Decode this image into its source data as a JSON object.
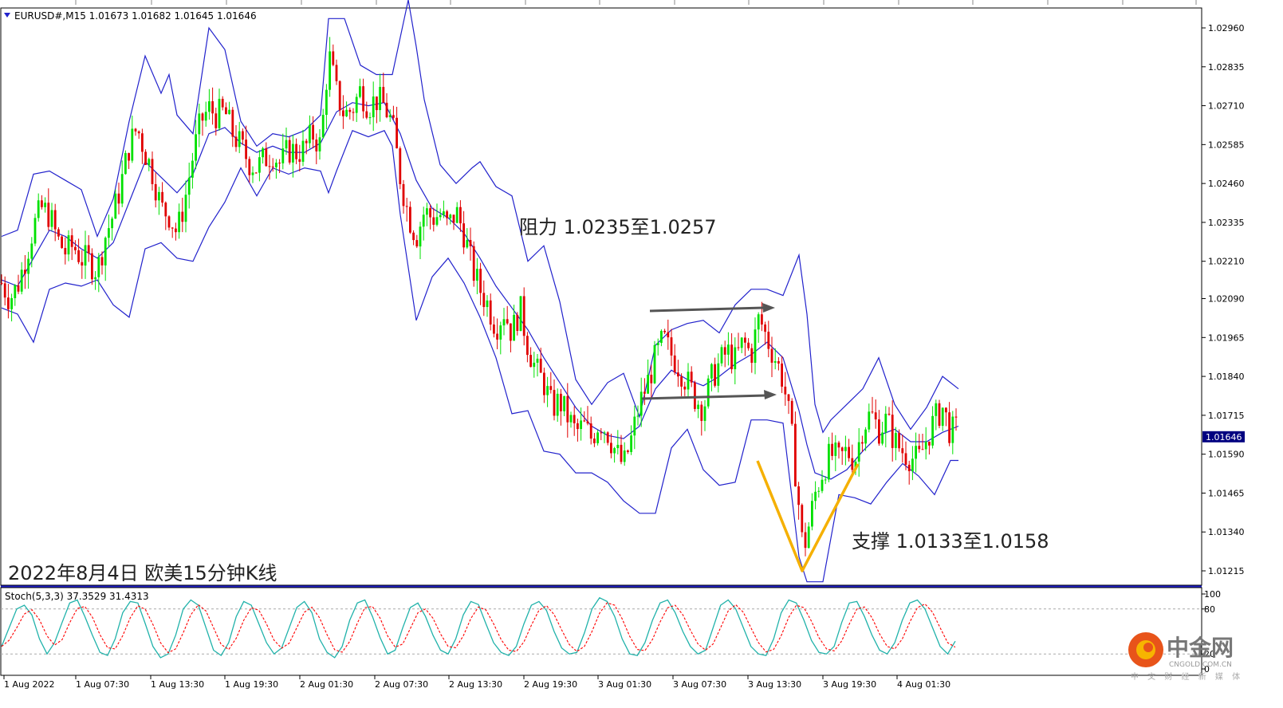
{
  "header": {
    "symbol_line": "EURUSD#,M15  1.01673 1.01682 1.01645 1.01646"
  },
  "chart_data": {
    "type": "candlestick",
    "symbol": "EURUSD#",
    "timeframe": "M15",
    "ohlc_last": {
      "open": 1.01673,
      "high": 1.01682,
      "low": 1.01645,
      "close": 1.01646
    },
    "current_price_label": "1.01646",
    "price_axis_ticks": [
      "1.02960",
      "1.02835",
      "1.02710",
      "1.02585",
      "1.02460",
      "1.02335",
      "1.02210",
      "1.02090",
      "1.01965",
      "1.01840",
      "1.01715",
      "1.01590",
      "1.01465",
      "1.01340",
      "1.01215"
    ],
    "price_axis_values": [
      1.0296,
      1.02835,
      1.0271,
      1.02585,
      1.0246,
      1.02335,
      1.0221,
      1.0209,
      1.01965,
      1.0184,
      1.01715,
      1.0159,
      1.01465,
      1.0134,
      1.01215
    ],
    "ylim": [
      1.0118,
      1.0304
    ],
    "time_axis_ticks": [
      "1 Aug 2022",
      "1 Aug 07:30",
      "1 Aug 13:30",
      "1 Aug 19:30",
      "2 Aug 01:30",
      "2 Aug 07:30",
      "2 Aug 13:30",
      "2 Aug 19:30",
      "3 Aug 01:30",
      "3 Aug 07:30",
      "3 Aug 13:30",
      "3 Aug 19:30",
      "4 Aug 01:30"
    ],
    "bull_color": "#00e000",
    "bear_color": "#e00000",
    "band_color": "#2222cc",
    "price_path": [
      [
        0,
        1.0214
      ],
      [
        10,
        1.0209
      ],
      [
        20,
        1.0213
      ],
      [
        30,
        1.0222
      ],
      [
        40,
        1.0232
      ],
      [
        50,
        1.0238
      ],
      [
        60,
        1.0236
      ],
      [
        70,
        1.0228
      ],
      [
        80,
        1.0224
      ],
      [
        90,
        1.0226
      ],
      [
        100,
        1.0222
      ],
      [
        110,
        1.0221
      ],
      [
        120,
        1.0218
      ],
      [
        130,
        1.0229
      ],
      [
        140,
        1.0236
      ],
      [
        150,
        1.0246
      ],
      [
        160,
        1.0258
      ],
      [
        170,
        1.0264
      ],
      [
        180,
        1.0256
      ],
      [
        190,
        1.0249
      ],
      [
        200,
        1.0238
      ],
      [
        210,
        1.0236
      ],
      [
        220,
        1.023
      ],
      [
        230,
        1.0241
      ],
      [
        240,
        1.0255
      ],
      [
        250,
        1.0266
      ],
      [
        260,
        1.027
      ],
      [
        270,
        1.0268
      ],
      [
        280,
        1.0269
      ],
      [
        290,
        1.0262
      ],
      [
        300,
        1.0258
      ],
      [
        310,
        1.0253
      ],
      [
        320,
        1.0251
      ],
      [
        330,
        1.0254
      ],
      [
        340,
        1.0256
      ],
      [
        350,
        1.0252
      ],
      [
        360,
        1.0257
      ],
      [
        370,
        1.0256
      ],
      [
        380,
        1.0257
      ],
      [
        390,
        1.0262
      ],
      [
        400,
        1.0258
      ],
      [
        405,
        1.0272
      ],
      [
        410,
        1.0288
      ],
      [
        420,
        1.0275
      ],
      [
        430,
        1.0268
      ],
      [
        440,
        1.027
      ],
      [
        450,
        1.0276
      ],
      [
        460,
        1.0271
      ],
      [
        470,
        1.0273
      ],
      [
        480,
        1.0271
      ],
      [
        490,
        1.0265
      ],
      [
        500,
        1.0248
      ],
      [
        510,
        1.0236
      ],
      [
        520,
        1.0229
      ],
      [
        530,
        1.0237
      ],
      [
        540,
        1.0235
      ],
      [
        550,
        1.0236
      ],
      [
        560,
        1.0232
      ],
      [
        570,
        1.0237
      ],
      [
        580,
        1.023
      ],
      [
        590,
        1.0219
      ],
      [
        600,
        1.0212
      ],
      [
        610,
        1.0207
      ],
      [
        620,
        1.02
      ],
      [
        630,
        1.0205
      ],
      [
        640,
        1.0198
      ],
      [
        650,
        1.0206
      ],
      [
        660,
        1.0194
      ],
      [
        670,
        1.0186
      ],
      [
        680,
        1.0182
      ],
      [
        690,
        1.0174
      ],
      [
        700,
        1.0176
      ],
      [
        710,
        1.0171
      ],
      [
        720,
        1.0166
      ],
      [
        730,
        1.0168
      ],
      [
        740,
        1.0164
      ],
      [
        750,
        1.017
      ],
      [
        760,
        1.0166
      ],
      [
        770,
        1.016
      ],
      [
        780,
        1.0155
      ],
      [
        790,
        1.0164
      ],
      [
        800,
        1.0175
      ],
      [
        810,
        1.0182
      ],
      [
        820,
        1.019
      ],
      [
        830,
        1.0196
      ],
      [
        840,
        1.0191
      ],
      [
        850,
        1.0187
      ],
      [
        860,
        1.0182
      ],
      [
        870,
        1.0177
      ],
      [
        880,
        1.0174
      ],
      [
        890,
        1.0183
      ],
      [
        900,
        1.0188
      ],
      [
        910,
        1.0192
      ],
      [
        920,
        1.0189
      ],
      [
        930,
        1.0195
      ],
      [
        940,
        1.0191
      ],
      [
        950,
        1.0203
      ],
      [
        960,
        1.0196
      ],
      [
        970,
        1.019
      ],
      [
        980,
        1.0183
      ],
      [
        990,
        1.0167
      ],
      [
        1000,
        1.0142
      ],
      [
        1005,
        1.0128
      ],
      [
        1010,
        1.0133
      ],
      [
        1020,
        1.0146
      ],
      [
        1030,
        1.0154
      ],
      [
        1040,
        1.0159
      ],
      [
        1050,
        1.0157
      ],
      [
        1060,
        1.016
      ],
      [
        1070,
        1.0157
      ],
      [
        1080,
        1.0168
      ],
      [
        1090,
        1.0172
      ],
      [
        1100,
        1.0167
      ],
      [
        1110,
        1.017
      ],
      [
        1120,
        1.0163
      ],
      [
        1130,
        1.016
      ],
      [
        1140,
        1.0158
      ],
      [
        1150,
        1.0157
      ],
      [
        1160,
        1.0164
      ],
      [
        1170,
        1.017
      ],
      [
        1180,
        1.0174
      ],
      [
        1190,
        1.0166
      ],
      [
        1200,
        1.0167
      ]
    ],
    "upper_band_path": [
      [
        0,
        1.0229
      ],
      [
        20,
        1.0231
      ],
      [
        40,
        1.0249
      ],
      [
        60,
        1.025
      ],
      [
        80,
        1.0247
      ],
      [
        100,
        1.0244
      ],
      [
        120,
        1.0229
      ],
      [
        140,
        1.0241
      ],
      [
        160,
        1.0266
      ],
      [
        180,
        1.0287
      ],
      [
        200,
        1.0275
      ],
      [
        210,
        1.0281
      ],
      [
        220,
        1.0268
      ],
      [
        240,
        1.0262
      ],
      [
        260,
        1.0296
      ],
      [
        280,
        1.0289
      ],
      [
        300,
        1.0266
      ],
      [
        320,
        1.0258
      ],
      [
        340,
        1.0262
      ],
      [
        360,
        1.0261
      ],
      [
        380,
        1.0263
      ],
      [
        400,
        1.0268
      ],
      [
        410,
        1.0299
      ],
      [
        430,
        1.0299
      ],
      [
        450,
        1.0284
      ],
      [
        470,
        1.0281
      ],
      [
        490,
        1.0281
      ],
      [
        500,
        1.0293
      ],
      [
        510,
        1.0305
      ],
      [
        520,
        1.029
      ],
      [
        530,
        1.0273
      ],
      [
        550,
        1.0252
      ],
      [
        570,
        1.0246
      ],
      [
        590,
        1.0251
      ],
      [
        600,
        1.0253
      ],
      [
        620,
        1.0245
      ],
      [
        640,
        1.0242
      ],
      [
        660,
        1.0221
      ],
      [
        680,
        1.0226
      ],
      [
        700,
        1.0208
      ],
      [
        720,
        1.0183
      ],
      [
        740,
        1.0175
      ],
      [
        760,
        1.0182
      ],
      [
        780,
        1.0185
      ],
      [
        800,
        1.0171
      ],
      [
        820,
        1.0194
      ],
      [
        840,
        1.0199
      ],
      [
        860,
        1.0201
      ],
      [
        880,
        1.0202
      ],
      [
        900,
        1.0198
      ],
      [
        920,
        1.0207
      ],
      [
        940,
        1.0212
      ],
      [
        960,
        1.0212
      ],
      [
        980,
        1.021
      ],
      [
        1000,
        1.0223
      ],
      [
        1010,
        1.0204
      ],
      [
        1020,
        1.0175
      ],
      [
        1030,
        1.0166
      ],
      [
        1040,
        1.017
      ],
      [
        1060,
        1.0175
      ],
      [
        1080,
        1.018
      ],
      [
        1100,
        1.019
      ],
      [
        1120,
        1.0175
      ],
      [
        1140,
        1.0167
      ],
      [
        1160,
        1.0174
      ],
      [
        1180,
        1.0184
      ],
      [
        1200,
        1.018
      ]
    ],
    "middle_band_path": [
      [
        0,
        1.0215
      ],
      [
        20,
        1.0213
      ],
      [
        40,
        1.0222
      ],
      [
        60,
        1.0231
      ],
      [
        80,
        1.0229
      ],
      [
        100,
        1.0225
      ],
      [
        120,
        1.0222
      ],
      [
        140,
        1.0227
      ],
      [
        160,
        1.024
      ],
      [
        180,
        1.0253
      ],
      [
        200,
        1.0248
      ],
      [
        220,
        1.0243
      ],
      [
        240,
        1.0249
      ],
      [
        260,
        1.0262
      ],
      [
        280,
        1.0264
      ],
      [
        300,
        1.0259
      ],
      [
        320,
        1.0256
      ],
      [
        340,
        1.0258
      ],
      [
        360,
        1.0256
      ],
      [
        380,
        1.0256
      ],
      [
        400,
        1.0259
      ],
      [
        420,
        1.0269
      ],
      [
        440,
        1.0272
      ],
      [
        460,
        1.0271
      ],
      [
        480,
        1.0272
      ],
      [
        500,
        1.0262
      ],
      [
        520,
        1.0247
      ],
      [
        540,
        1.0238
      ],
      [
        560,
        1.0235
      ],
      [
        580,
        1.023
      ],
      [
        600,
        1.0222
      ],
      [
        620,
        1.0213
      ],
      [
        640,
        1.0206
      ],
      [
        660,
        1.0199
      ],
      [
        680,
        1.019
      ],
      [
        700,
        1.0182
      ],
      [
        720,
        1.0174
      ],
      [
        740,
        1.0168
      ],
      [
        760,
        1.0165
      ],
      [
        780,
        1.0164
      ],
      [
        800,
        1.0168
      ],
      [
        820,
        1.018
      ],
      [
        840,
        1.0186
      ],
      [
        860,
        1.0183
      ],
      [
        880,
        1.0181
      ],
      [
        900,
        1.0184
      ],
      [
        920,
        1.0188
      ],
      [
        940,
        1.0191
      ],
      [
        960,
        1.0195
      ],
      [
        980,
        1.019
      ],
      [
        1000,
        1.0173
      ],
      [
        1010,
        1.0162
      ],
      [
        1020,
        1.0153
      ],
      [
        1040,
        1.0151
      ],
      [
        1060,
        1.0154
      ],
      [
        1080,
        1.016
      ],
      [
        1100,
        1.0165
      ],
      [
        1120,
        1.0167
      ],
      [
        1140,
        1.0163
      ],
      [
        1160,
        1.0163
      ],
      [
        1180,
        1.0166
      ],
      [
        1200,
        1.0168
      ]
    ],
    "lower_band_path": [
      [
        0,
        1.0206
      ],
      [
        20,
        1.0204
      ],
      [
        40,
        1.0195
      ],
      [
        60,
        1.0212
      ],
      [
        80,
        1.0214
      ],
      [
        100,
        1.0213
      ],
      [
        120,
        1.0215
      ],
      [
        140,
        1.0207
      ],
      [
        160,
        1.0203
      ],
      [
        180,
        1.0225
      ],
      [
        200,
        1.0227
      ],
      [
        220,
        1.0222
      ],
      [
        240,
        1.0221
      ],
      [
        260,
        1.0232
      ],
      [
        280,
        1.024
      ],
      [
        300,
        1.0251
      ],
      [
        320,
        1.0242
      ],
      [
        340,
        1.0251
      ],
      [
        360,
        1.0249
      ],
      [
        380,
        1.0251
      ],
      [
        400,
        1.025
      ],
      [
        410,
        1.0243
      ],
      [
        420,
        1.025
      ],
      [
        440,
        1.0263
      ],
      [
        460,
        1.0261
      ],
      [
        480,
        1.0263
      ],
      [
        490,
        1.0258
      ],
      [
        500,
        1.0236
      ],
      [
        520,
        1.0202
      ],
      [
        540,
        1.0216
      ],
      [
        560,
        1.0222
      ],
      [
        580,
        1.0214
      ],
      [
        600,
        1.0203
      ],
      [
        620,
        1.019
      ],
      [
        640,
        1.0172
      ],
      [
        660,
        1.0173
      ],
      [
        680,
        1.016
      ],
      [
        700,
        1.0159
      ],
      [
        720,
        1.0153
      ],
      [
        740,
        1.0153
      ],
      [
        760,
        1.015
      ],
      [
        780,
        1.0144
      ],
      [
        800,
        1.014
      ],
      [
        820,
        1.014
      ],
      [
        840,
        1.0161
      ],
      [
        860,
        1.0167
      ],
      [
        880,
        1.0154
      ],
      [
        900,
        1.0149
      ],
      [
        920,
        1.015
      ],
      [
        940,
        1.017
      ],
      [
        960,
        1.017
      ],
      [
        980,
        1.0169
      ],
      [
        1000,
        1.0126
      ],
      [
        1010,
        1.0118
      ],
      [
        1030,
        1.0118
      ],
      [
        1050,
        1.0146
      ],
      [
        1070,
        1.0145
      ],
      [
        1090,
        1.0143
      ],
      [
        1110,
        1.015
      ],
      [
        1130,
        1.0156
      ],
      [
        1150,
        1.0152
      ],
      [
        1170,
        1.0146
      ],
      [
        1190,
        1.0157
      ],
      [
        1200,
        1.0157
      ]
    ],
    "annotations": {
      "resistance_text": "阻力 1.0235至1.0257",
      "support_text": "支撑 1.0133至1.0158",
      "caption": "2022年8月4日 欧美15分钟K线"
    },
    "stochastic": {
      "label": "Stoch(5,3,3) 37.3529 31.4313",
      "k": 37.3529,
      "d": 31.4313,
      "axis_ticks": [
        "100",
        "80",
        "20",
        "0"
      ],
      "levels": [
        80,
        20
      ],
      "k_color": "#20b2aa",
      "d_color": "#ff0000",
      "k_series": [
        30,
        55,
        80,
        85,
        72,
        40,
        20,
        35,
        62,
        88,
        92,
        70,
        45,
        22,
        18,
        40,
        75,
        90,
        88,
        60,
        30,
        15,
        20,
        45,
        80,
        92,
        85,
        55,
        25,
        18,
        35,
        70,
        90,
        85,
        60,
        35,
        20,
        28,
        55,
        82,
        90,
        75,
        40,
        22,
        15,
        30,
        65,
        88,
        92,
        70,
        42,
        20,
        25,
        55,
        82,
        88,
        70,
        45,
        25,
        20,
        40,
        72,
        90,
        86,
        60,
        35,
        22,
        18,
        30,
        60,
        85,
        90,
        78,
        50,
        28,
        20,
        22,
        48,
        80,
        95,
        90,
        70,
        40,
        20,
        18,
        35,
        65,
        88,
        92,
        75,
        50,
        30,
        20,
        25,
        55,
        85,
        92,
        80,
        55,
        30,
        20,
        18,
        40,
        75,
        92,
        88,
        65,
        38,
        22,
        20,
        30,
        62,
        88,
        90,
        70,
        45,
        25,
        20,
        35,
        65,
        88,
        92,
        80,
        55,
        30,
        20,
        37
      ]
    }
  },
  "watermark": {
    "brand_cn": "中金网",
    "brand_en": "CNGOLD.COM.CN",
    "brand_sub": "中 文 财 经 新 媒 体"
  }
}
